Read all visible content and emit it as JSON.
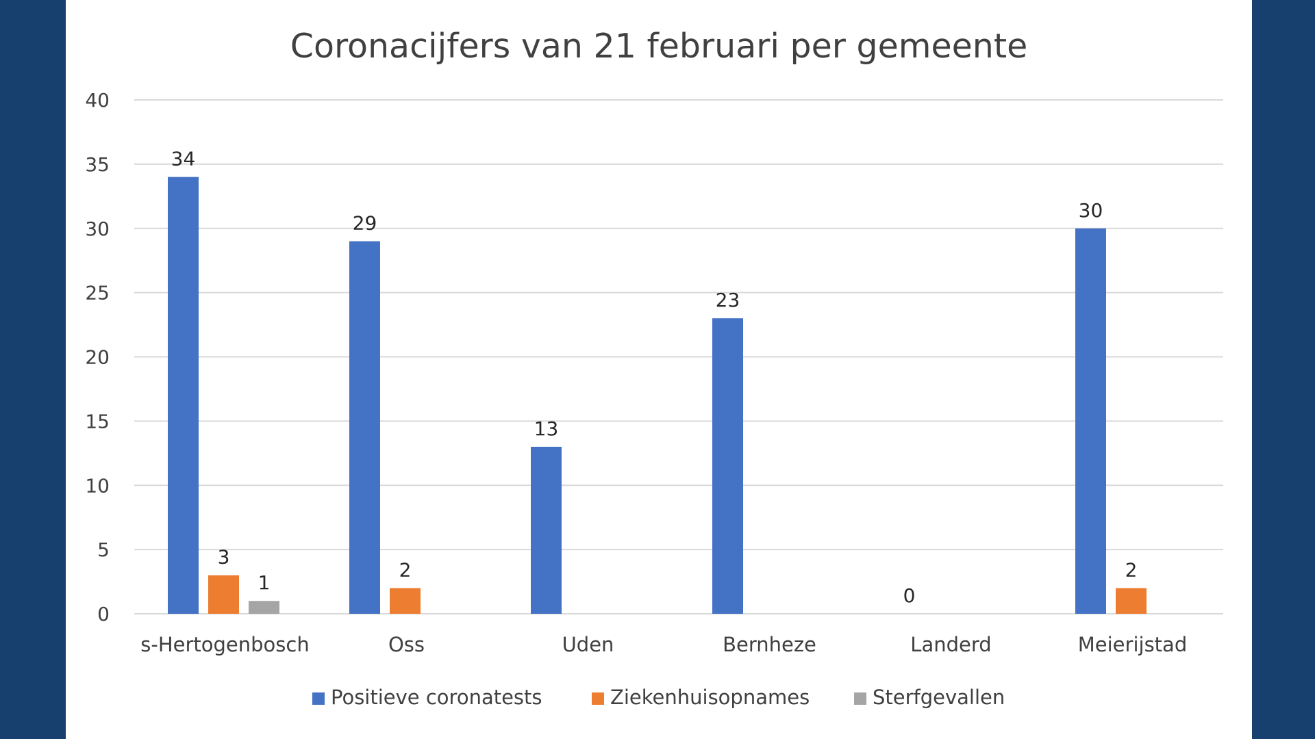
{
  "chart_data": {
    "type": "bar",
    "title": "Coronacijfers van 21 februari per gemeente",
    "xlabel": "",
    "ylabel": "",
    "ylim": [
      0,
      40
    ],
    "yticks": [
      0,
      5,
      10,
      15,
      20,
      25,
      30,
      35,
      40
    ],
    "grid": true,
    "legend_position": "bottom",
    "categories": [
      "s-Hertogenbosch",
      "Oss",
      "Uden",
      "Bernheze",
      "Landerd",
      "Meierijstad"
    ],
    "series": [
      {
        "name": "Positieve coronatests",
        "color": "#4472c4",
        "values": [
          34,
          29,
          13,
          23,
          0,
          30
        ]
      },
      {
        "name": "Ziekenhuisopnames",
        "color": "#ed7d31",
        "values": [
          3,
          2,
          null,
          null,
          null,
          2
        ]
      },
      {
        "name": "Sterfgevallen",
        "color": "#a5a5a5",
        "values": [
          1,
          null,
          null,
          null,
          null,
          null
        ]
      }
    ]
  }
}
